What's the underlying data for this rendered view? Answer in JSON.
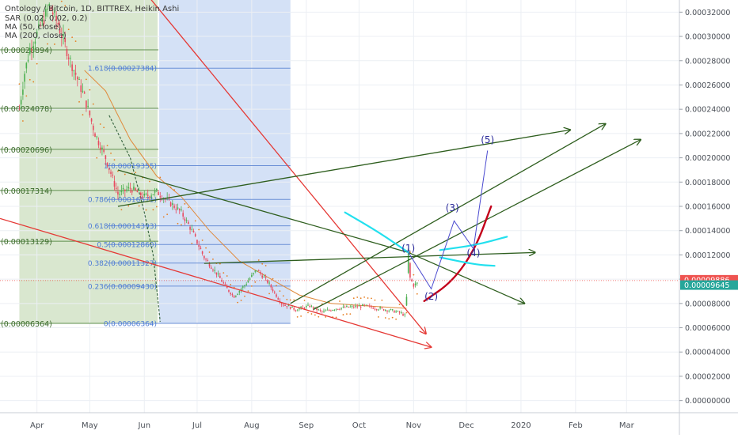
{
  "legend": {
    "symbol_line": "Ontology / Bitcoin, 1D, BITTREX, Heikin Ashi",
    "sar_line": "SAR (0.02, 0.02, 0.2)",
    "ma50_line": "MA (50, close)",
    "ma200_line": "MA (200, close)"
  },
  "colors": {
    "background": "#ffffff",
    "grid": "#eceff4",
    "candle_up": "#4caf50",
    "candle_down": "#e84a5f",
    "ma50": "#e08a3c",
    "ma200": "#3f6b47",
    "sar": "#e67e22",
    "fib_line": "#6a8fd6",
    "fib_text": "#4b7bd4",
    "shade_green": "#d9e7cf",
    "shade_blue": "#d4e1f6",
    "trend_red": "#e53935",
    "trend_green": "#2e5e1e",
    "wave_blue": "#2a2a9a",
    "curve_dark_red": "#c3001a",
    "cyan": "#22e0ee",
    "price_badge_red": "#ef5350",
    "price_badge_green": "#26a69a"
  },
  "chart_data": {
    "type": "candlestick",
    "title": "Ontology / Bitcoin, 1D, BITTREX, Heikin Ashi",
    "x_axis": {
      "range": [
        "2019-03-11",
        "2020-03-31"
      ],
      "tick_labels": [
        "Apr",
        "May",
        "Jun",
        "Jul",
        "Aug",
        "Sep",
        "Oct",
        "Nov",
        "Dec",
        "2020",
        "Feb",
        "Mar"
      ]
    },
    "y_axis": {
      "range": [
        -1e-05,
        0.00033
      ],
      "tick_labels": [
        "0.00032000",
        "0.00030000",
        "0.00028000",
        "0.00026000",
        "0.00024000",
        "0.00022000",
        "0.00020000",
        "0.00018000",
        "0.00016000",
        "0.00014000",
        "0.00012000",
        "0.00010000",
        "0.00008000",
        "0.00006000",
        "0.00004000",
        "0.00002000",
        "0.00000000"
      ],
      "tick_values": [
        0.00032,
        0.0003,
        0.00028,
        0.00026,
        0.00024,
        0.00022,
        0.0002,
        0.00018,
        0.00016,
        0.00014,
        0.00012,
        0.0001,
        8e-05,
        6e-05,
        4e-05,
        2e-05,
        0
      ]
    },
    "price_badges": [
      {
        "label": "0.00009886",
        "value": 9.886e-05,
        "color": "#ef5350"
      },
      {
        "label": "0.00009645",
        "value": 9.645e-05,
        "color": "#26a69a"
      }
    ],
    "fib_levels": [
      {
        "label": "1.618(0.00027384)",
        "value": 0.00027384
      },
      {
        "label": "1(0.00019355)",
        "value": 0.00019355
      },
      {
        "label": "0.786(0.00016571)",
        "value": 0.00016571
      },
      {
        "label": "0.618(0.00014393)",
        "value": 0.00014393
      },
      {
        "label": "0.5(0.00012860)",
        "value": 0.0001286
      },
      {
        "label": "0.382(0.00011327)",
        "value": 0.00011327
      },
      {
        "label": "0.236(0.00009430)",
        "value": 9.43e-05
      },
      {
        "label": "0(0.00006364)",
        "value": 6.364e-05
      }
    ],
    "fib_range_x": [
      "2019-06-09",
      "2019-08-23"
    ],
    "support_levels": [
      {
        "label": "(0.00028894)",
        "value": 0.00028894
      },
      {
        "label": "(0.00024078)",
        "value": 0.00024078
      },
      {
        "label": "(0.00020696)",
        "value": 0.00020696
      },
      {
        "label": "(0.00017314)",
        "value": 0.00017314
      },
      {
        "label": "(0.00013129)",
        "value": 0.00013129
      },
      {
        "label": "(0.00006364)",
        "value": 6.364e-05
      }
    ],
    "support_range_x": [
      "2019-03-11",
      "2019-06-09"
    ],
    "shaded_regions": [
      {
        "x": [
          "2019-03-22",
          "2019-06-09"
        ],
        "y": [
          6.364e-05,
          0.00033
        ],
        "color": "#d9e7cf"
      },
      {
        "x": [
          "2019-06-09",
          "2019-08-23"
        ],
        "y": [
          6.364e-05,
          0.00033
        ],
        "color": "#d4e1f6"
      }
    ],
    "price_series": [
      [
        "2019-03-22",
        0.00024
      ],
      [
        "2019-03-25",
        0.00027
      ],
      [
        "2019-03-28",
        0.00029
      ],
      [
        "2019-04-02",
        0.000305
      ],
      [
        "2019-04-08",
        0.000325
      ],
      [
        "2019-04-13",
        0.00031
      ],
      [
        "2019-04-20",
        0.00028
      ],
      [
        "2019-04-28",
        0.00025
      ],
      [
        "2019-05-04",
        0.00022
      ],
      [
        "2019-05-10",
        0.0002
      ],
      [
        "2019-05-17",
        0.00017
      ],
      [
        "2019-05-24",
        0.000175
      ],
      [
        "2019-06-01",
        0.000168
      ],
      [
        "2019-06-08",
        0.000172
      ],
      [
        "2019-06-14",
        0.000165
      ],
      [
        "2019-06-22",
        0.000155
      ],
      [
        "2019-06-28",
        0.00014
      ],
      [
        "2019-07-05",
        0.000118
      ],
      [
        "2019-07-12",
        0.000105
      ],
      [
        "2019-07-18",
        9.2e-05
      ],
      [
        "2019-07-22",
        8.6e-05
      ],
      [
        "2019-07-28",
        9.5e-05
      ],
      [
        "2019-08-04",
        0.000108
      ],
      [
        "2019-08-10",
        9.8e-05
      ],
      [
        "2019-08-18",
        8e-05
      ],
      [
        "2019-08-26",
        7.5e-05
      ],
      [
        "2019-09-03",
        7.8e-05
      ],
      [
        "2019-09-10",
        7.3e-05
      ],
      [
        "2019-09-18",
        7.6e-05
      ],
      [
        "2019-09-26",
        7.7e-05
      ],
      [
        "2019-10-04",
        7.8e-05
      ],
      [
        "2019-10-12",
        7.6e-05
      ],
      [
        "2019-10-20",
        7.4e-05
      ],
      [
        "2019-10-25",
        7.2e-05
      ],
      [
        "2019-10-27",
        7e-05
      ],
      [
        "2019-10-28",
        8.5e-05
      ],
      [
        "2019-10-29",
        0.000124
      ],
      [
        "2019-10-30",
        0.000101
      ],
      [
        "2019-11-01",
        9.5e-05
      ],
      [
        "2019-11-03",
        9.645e-05
      ]
    ],
    "ma50": [
      [
        "2019-04-28",
        0.000272
      ],
      [
        "2019-05-10",
        0.000255
      ],
      [
        "2019-05-24",
        0.000215
      ],
      [
        "2019-06-08",
        0.000185
      ],
      [
        "2019-06-22",
        0.000168
      ],
      [
        "2019-07-08",
        0.00014
      ],
      [
        "2019-07-25",
        0.000115
      ],
      [
        "2019-08-12",
        0.0001
      ],
      [
        "2019-08-28",
        8.7e-05
      ],
      [
        "2019-09-15",
        8e-05
      ],
      [
        "2019-10-05",
        7.8e-05
      ],
      [
        "2019-10-28",
        7.6e-05
      ]
    ],
    "ma200": [
      [
        "2019-05-12",
        0.000235
      ],
      [
        "2019-05-24",
        0.0002
      ],
      [
        "2019-06-01",
        0.000155
      ],
      [
        "2019-06-06",
        0.00012
      ],
      [
        "2019-06-10",
        6.5e-05
      ]
    ],
    "annotations": [
      {
        "label": "(1)",
        "x": "2019-10-29",
        "y": 0.000123
      },
      {
        "label": "(2)",
        "x": "2019-11-11",
        "y": 8.3e-05
      },
      {
        "label": "(3)",
        "x": "2019-11-23",
        "y": 0.000156
      },
      {
        "label": "(4)",
        "x": "2019-12-05",
        "y": 0.000119
      },
      {
        "label": "(5)",
        "x": "2019-12-13",
        "y": 0.000212
      }
    ],
    "trendlines": [
      {
        "color": "#e53935",
        "points": [
          [
            "2019-05-19",
            0.00036
          ],
          [
            "2019-11-08",
            5.5e-05
          ]
        ],
        "arrow": true
      },
      {
        "color": "#e53935",
        "points": [
          [
            "2019-03-11",
            0.00015
          ],
          [
            "2019-11-11",
            4.4e-05
          ]
        ],
        "arrow": true
      },
      {
        "color": "#2e5e1e",
        "points": [
          [
            "2019-05-17",
            0.00016
          ],
          [
            "2020-01-29",
            0.000223
          ]
        ],
        "arrow": true
      },
      {
        "color": "#2e5e1e",
        "points": [
          [
            "2019-05-17",
            0.00019
          ],
          [
            "2019-10-29",
            0.000122
          ]
        ],
        "arrow": false
      },
      {
        "color": "#2e5e1e",
        "points": [
          [
            "2019-07-05",
            0.000113
          ],
          [
            "2020-01-09",
            0.000122
          ]
        ],
        "arrow": true
      },
      {
        "color": "#2e5e1e",
        "points": [
          [
            "2019-08-23",
            8e-05
          ],
          [
            "2020-02-18",
            0.000228
          ]
        ],
        "arrow": true
      },
      {
        "color": "#2e5e1e",
        "points": [
          [
            "2019-09-05",
            7.5e-05
          ],
          [
            "2020-03-09",
            0.000215
          ]
        ],
        "arrow": true
      },
      {
        "color": "#2e5e1e",
        "points": [
          [
            "2019-10-29",
            0.000122
          ],
          [
            "2020-01-03",
            8e-05
          ]
        ],
        "arrow": true
      }
    ],
    "wave_path": [
      [
        "2019-10-29",
        0.000122
      ],
      [
        "2019-11-11",
        9.2e-05
      ],
      [
        "2019-11-24",
        0.000148
      ],
      [
        "2019-12-05",
        0.000125
      ],
      [
        "2019-12-13",
        0.000206
      ]
    ],
    "curves": [
      {
        "color": "#c3001a",
        "points": [
          [
            "2019-11-07",
            8.2e-05
          ],
          [
            "2019-11-23",
            9.8e-05
          ],
          [
            "2019-12-06",
            0.000125
          ],
          [
            "2019-12-15",
            0.00016
          ]
        ]
      },
      {
        "color": "#22e0ee",
        "points": [
          [
            "2019-11-16",
            0.000124
          ],
          [
            "2019-12-06",
            0.000128
          ],
          [
            "2019-12-24",
            0.000135
          ]
        ]
      },
      {
        "color": "#22e0ee",
        "points": [
          [
            "2019-11-16",
            0.000118
          ],
          [
            "2019-12-06",
            0.000112
          ],
          [
            "2019-12-17",
            0.000111
          ]
        ]
      },
      {
        "color": "#22e0ee",
        "points": [
          [
            "2019-09-23",
            0.000155
          ],
          [
            "2019-10-13",
            0.000138
          ],
          [
            "2019-10-29",
            0.000122
          ]
        ]
      }
    ]
  }
}
